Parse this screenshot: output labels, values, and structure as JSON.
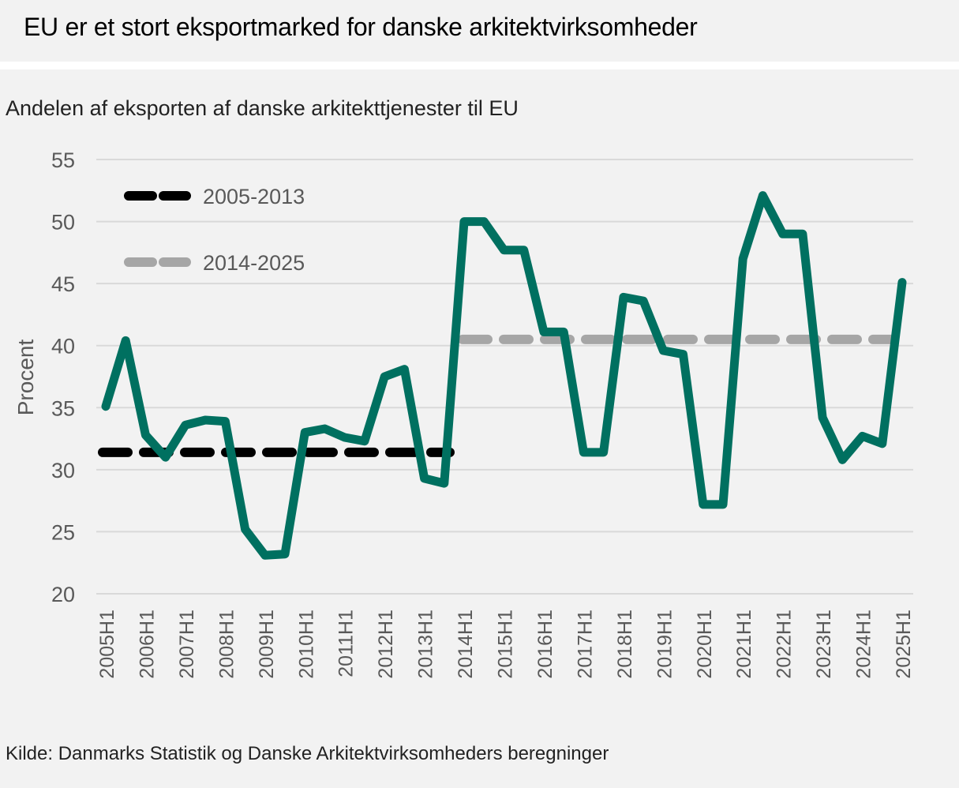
{
  "title": "EU er et stort eksportmarked for danske arkitektvirksomheder",
  "subtitle": "Andelen af eksporten af danske arkitekttjenester til EU",
  "source": "Kilde: Danmarks Statistik og Danske Arkitektvirksomheders beregninger",
  "colors": {
    "series": "#007060",
    "avg_2005_2013": "#000000",
    "avg_2014_2025": "#a6a6a6",
    "grid": "#d9d9d9",
    "background": "#f2f2f2"
  },
  "chart_data": {
    "type": "line",
    "ylabel": "Procent",
    "xlabel": "",
    "ylim": [
      20,
      55
    ],
    "yticks": [
      20,
      25,
      30,
      35,
      40,
      45,
      50,
      55
    ],
    "grid": true,
    "legend_position": "top-left",
    "x_tick_labels": [
      "2005H1",
      "2006H1",
      "2007H1",
      "2008H1",
      "2009H1",
      "2010H1",
      "2011H1",
      "2012H1",
      "2013H1",
      "2014H1",
      "2015H1",
      "2016H1",
      "2017H1",
      "2018H1",
      "2019H1",
      "2020H1",
      "2021H1",
      "2022H1",
      "2023H1",
      "2024H1",
      "2025H1"
    ],
    "x": [
      "2005H1",
      "2005H2",
      "2006H1",
      "2006H2",
      "2007H1",
      "2007H2",
      "2008H1",
      "2008H2",
      "2009H1",
      "2009H2",
      "2010H1",
      "2010H2",
      "2011H1",
      "2011H2",
      "2012H1",
      "2012H2",
      "2013H1",
      "2013H2",
      "2014H1",
      "2014H2",
      "2015H1",
      "2015H2",
      "2016H1",
      "2016H2",
      "2017H1",
      "2017H2",
      "2018H1",
      "2018H2",
      "2019H1",
      "2019H2",
      "2020H1",
      "2020H2",
      "2021H1",
      "2021H2",
      "2022H1",
      "2022H2",
      "2023H1",
      "2023H2",
      "2024H1",
      "2024H2",
      "2025H1"
    ],
    "series": [
      {
        "values": [
          35.1,
          40.4,
          32.8,
          31.0,
          33.6,
          34.0,
          33.9,
          25.2,
          23.1,
          23.2,
          33.0,
          33.3,
          32.6,
          32.3,
          37.5,
          38.1,
          29.3,
          28.9,
          50.0,
          50.0,
          47.7,
          47.7,
          41.1,
          41.1,
          31.4,
          31.4,
          43.9,
          43.6,
          39.6,
          39.3,
          27.2,
          27.2,
          47.0,
          52.1,
          49.0,
          49.0,
          34.2,
          30.8,
          32.7,
          32.1,
          45.1
        ]
      }
    ],
    "averages": [
      {
        "name": "2005-2013",
        "value": 31.4,
        "from": "2005H1",
        "to": "2014H1"
      },
      {
        "name": "2014-2025",
        "value": 40.5,
        "from": "2014H1",
        "to": "2025H1"
      }
    ]
  }
}
